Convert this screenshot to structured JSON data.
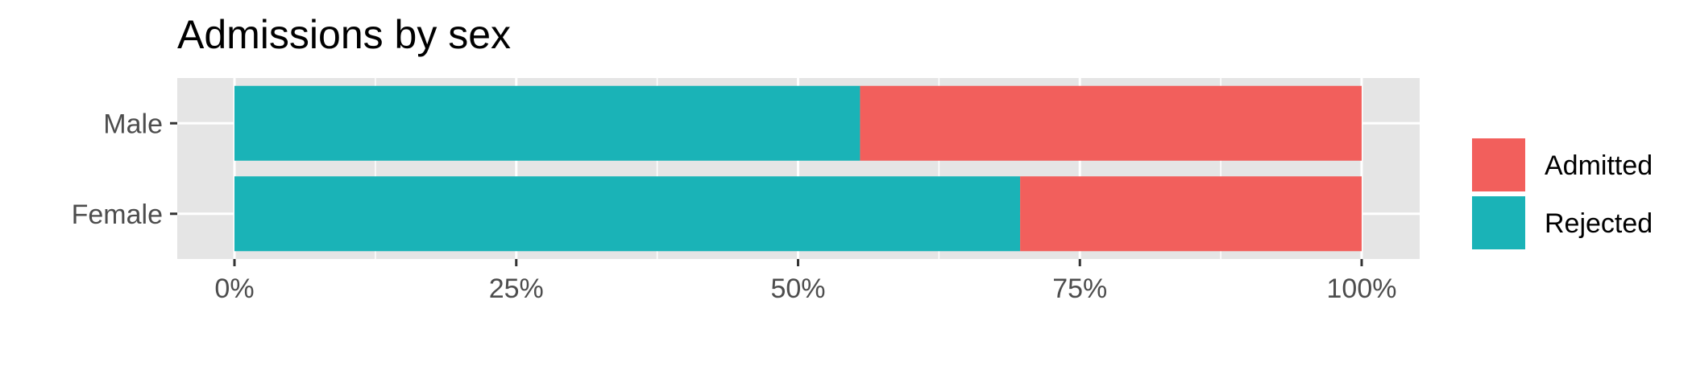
{
  "chart_data": {
    "type": "bar",
    "orientation": "horizontal",
    "stacked": true,
    "normalized": true,
    "title": "Admissions by sex",
    "xlabel": "",
    "ylabel": "",
    "categories": [
      "Male",
      "Female"
    ],
    "series": [
      {
        "name": "Rejected",
        "color": "#1AB3B7",
        "values": [
          0.555,
          0.697
        ]
      },
      {
        "name": "Admitted",
        "color": "#F25F5C",
        "values": [
          0.445,
          0.303
        ]
      }
    ],
    "xlim": [
      0,
      1
    ],
    "x_ticks": [
      {
        "value": 0,
        "label": "0%"
      },
      {
        "value": 0.25,
        "label": "25%"
      },
      {
        "value": 0.5,
        "label": "50%"
      },
      {
        "value": 0.75,
        "label": "75%"
      },
      {
        "value": 1,
        "label": "100%"
      }
    ],
    "x_minor_ticks": [
      0.125,
      0.375,
      0.625,
      0.875
    ],
    "legend": {
      "position": "right",
      "entries": [
        {
          "label": "Admitted",
          "color": "#F25F5C"
        },
        {
          "label": "Rejected",
          "color": "#1AB3B7"
        }
      ]
    },
    "grid": true,
    "panel_background": "#E5E5E5",
    "grid_color": "#FFFFFF"
  }
}
